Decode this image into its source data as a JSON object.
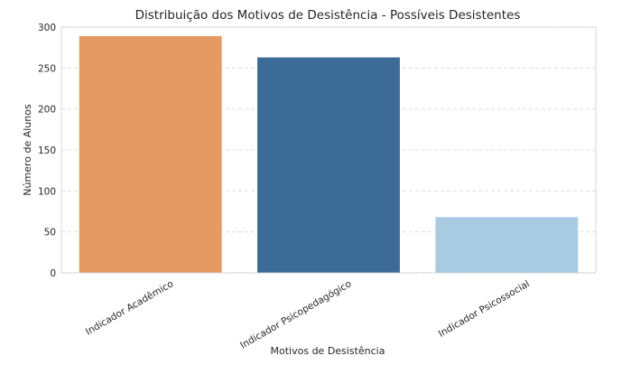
{
  "chart_data": {
    "type": "bar",
    "title": "Distribuição dos Motivos de Desistência - Possíveis Desistentes",
    "xlabel": "Motivos de Desistência",
    "ylabel": "Número de Alunos",
    "categories": [
      "Indicador Acadêmico",
      "Indicador Psicopedagógico",
      "Indicador Psicossocial"
    ],
    "values": [
      289,
      263,
      68
    ],
    "colors": [
      "#e59a63",
      "#3b6b96",
      "#a8cbe2"
    ],
    "ylim": [
      0,
      300
    ],
    "yticks": [
      0,
      50,
      100,
      150,
      200,
      250,
      300
    ],
    "grid": true,
    "grid_axis": "y",
    "legend": "none"
  }
}
